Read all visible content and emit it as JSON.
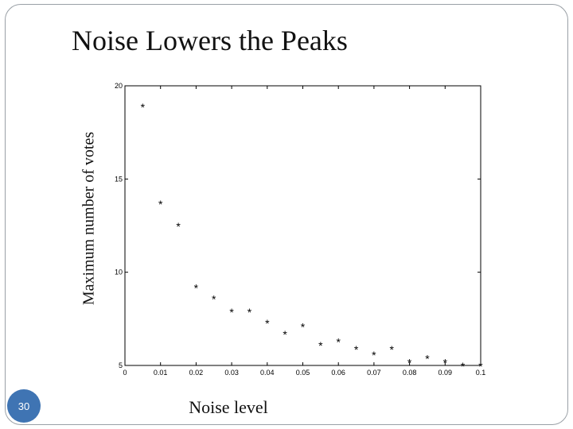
{
  "slide": {
    "title": "Noise Lowers the Peaks",
    "page_number": "30",
    "badge_color": "#3f74b3"
  },
  "chart_data": {
    "type": "scatter",
    "marker": "*",
    "xlabel": "Noise level",
    "ylabel": "Maximum number of votes",
    "xlim": [
      0,
      0.1
    ],
    "ylim": [
      5,
      20
    ],
    "xticks": [
      0,
      0.01,
      0.02,
      0.03,
      0.04,
      0.05,
      0.06,
      0.07,
      0.08,
      0.09,
      0.1
    ],
    "xtick_labels": [
      "0",
      "0.01",
      "0.02",
      "0.03",
      "0.04",
      "0.05",
      "0.06",
      "0.07",
      "0.08",
      "0.09",
      "0.1"
    ],
    "yticks": [
      5,
      10,
      15,
      20
    ],
    "ytick_labels": [
      "5",
      "10",
      "15",
      "20"
    ],
    "grid": false,
    "points": [
      {
        "x": 0.005,
        "y": 18.9
      },
      {
        "x": 0.01,
        "y": 13.7
      },
      {
        "x": 0.015,
        "y": 12.5
      },
      {
        "x": 0.02,
        "y": 9.2
      },
      {
        "x": 0.025,
        "y": 8.6
      },
      {
        "x": 0.03,
        "y": 7.9
      },
      {
        "x": 0.035,
        "y": 7.9
      },
      {
        "x": 0.04,
        "y": 7.3
      },
      {
        "x": 0.045,
        "y": 6.7
      },
      {
        "x": 0.05,
        "y": 7.1
      },
      {
        "x": 0.055,
        "y": 6.1
      },
      {
        "x": 0.06,
        "y": 6.3
      },
      {
        "x": 0.065,
        "y": 5.9
      },
      {
        "x": 0.07,
        "y": 5.6
      },
      {
        "x": 0.075,
        "y": 5.9
      },
      {
        "x": 0.08,
        "y": 5.2
      },
      {
        "x": 0.085,
        "y": 5.4
      },
      {
        "x": 0.09,
        "y": 5.2
      },
      {
        "x": 0.095,
        "y": 5.0
      },
      {
        "x": 0.1,
        "y": 5.0
      }
    ]
  }
}
